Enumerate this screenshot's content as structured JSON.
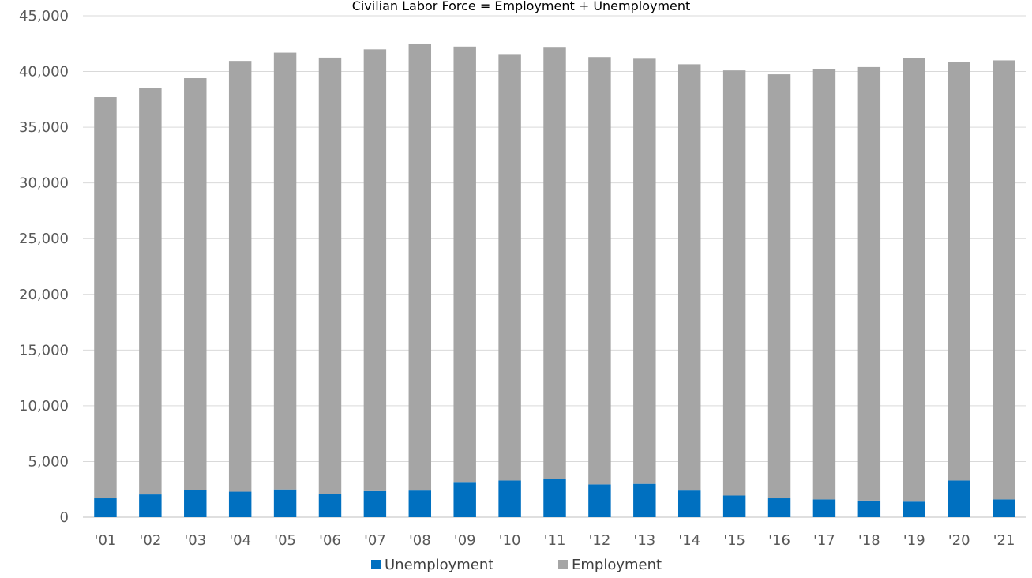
{
  "chart_data": {
    "type": "bar",
    "stacked": true,
    "title": "Civilian Labor Force = Employment + Unemployment",
    "categories": [
      "'01",
      "'02",
      "'03",
      "'04",
      "'05",
      "'06",
      "'07",
      "'08",
      "'09",
      "'10",
      "'11",
      "'12",
      "'13",
      "'14",
      "'15",
      "'16",
      "'17",
      "'18",
      "'19",
      "'20",
      "'21"
    ],
    "series": [
      {
        "name": "Unemployment",
        "color": "#0070C0",
        "values": [
          1700,
          2050,
          2450,
          2300,
          2500,
          2100,
          2350,
          2400,
          3100,
          3300,
          3450,
          2950,
          3000,
          2400,
          1950,
          1700,
          1600,
          1500,
          1400,
          3300,
          1600
        ]
      },
      {
        "name": "Employment",
        "color": "#A5A5A5",
        "values": [
          36000,
          36450,
          36950,
          38650,
          39200,
          39150,
          39650,
          40050,
          39150,
          38200,
          38700,
          38350,
          38150,
          38250,
          38150,
          38050,
          38650,
          38900,
          39800,
          37550,
          39400
        ]
      }
    ],
    "ylim": [
      0,
      45000
    ],
    "yticks": [
      0,
      5000,
      10000,
      15000,
      20000,
      25000,
      30000,
      35000,
      40000,
      45000
    ],
    "ytick_labels": [
      "0",
      "5,000",
      "10,000",
      "15,000",
      "20,000",
      "25,000",
      "30,000",
      "35,000",
      "40,000",
      "45,000"
    ],
    "grid": true,
    "legend_position": "bottom"
  }
}
